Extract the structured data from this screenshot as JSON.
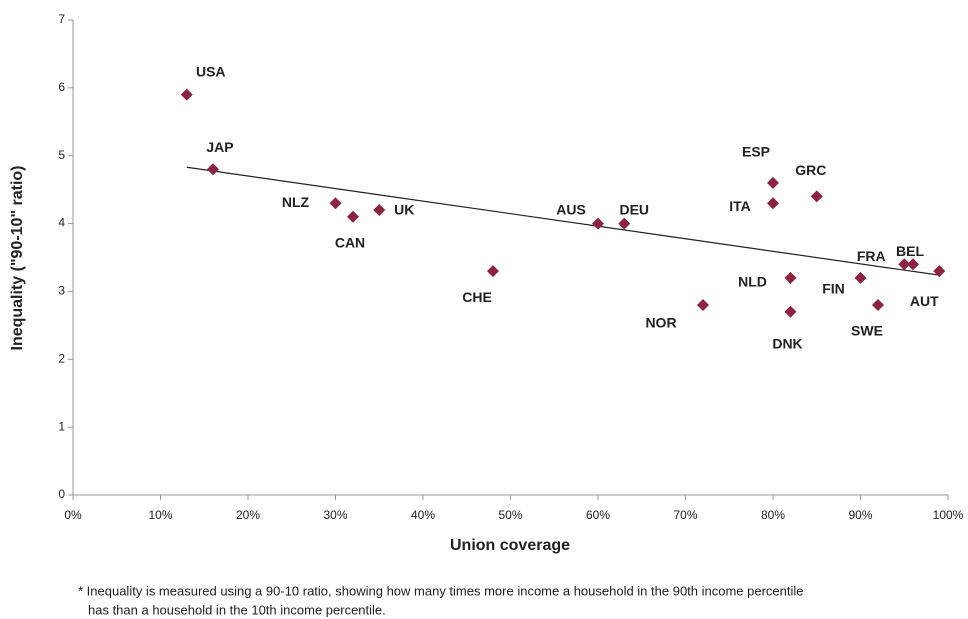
{
  "chart_data": {
    "type": "scatter",
    "x_label": "Union coverage",
    "y_label": "Inequality (\"90-10\" ratio)",
    "color": "#8e2341",
    "xlim": [
      0,
      100
    ],
    "ylim": [
      0,
      7
    ],
    "xticks": [
      {
        "value": 0,
        "label": "0%"
      },
      {
        "value": 10,
        "label": "10%"
      },
      {
        "value": 20,
        "label": "20%"
      },
      {
        "value": 30,
        "label": "30%"
      },
      {
        "value": 40,
        "label": "40%"
      },
      {
        "value": 50,
        "label": "50%"
      },
      {
        "value": 60,
        "label": "60%"
      },
      {
        "value": 70,
        "label": "70%"
      },
      {
        "value": 80,
        "label": "80%"
      },
      {
        "value": 90,
        "label": "90%"
      },
      {
        "value": 100,
        "label": "100%"
      }
    ],
    "yticks": [
      0,
      1,
      2,
      3,
      4,
      5,
      6,
      7
    ],
    "points": [
      {
        "label": "USA",
        "x": 13,
        "y": 5.9
      },
      {
        "label": "JAP",
        "x": 16,
        "y": 4.8
      },
      {
        "label": "NLZ",
        "x": 30,
        "y": 4.3
      },
      {
        "label": "CAN",
        "x": 32,
        "y": 4.1
      },
      {
        "label": "UK",
        "x": 35,
        "y": 4.2
      },
      {
        "label": "CHE",
        "x": 48,
        "y": 3.3
      },
      {
        "label": "AUS",
        "x": 60,
        "y": 4.0
      },
      {
        "label": "DEU",
        "x": 63,
        "y": 4.0
      },
      {
        "label": "NOR",
        "x": 72,
        "y": 2.8
      },
      {
        "label": "ESP",
        "x": 80,
        "y": 4.6
      },
      {
        "label": "ITA",
        "x": 80,
        "y": 4.3
      },
      {
        "label": "GRC",
        "x": 85,
        "y": 4.4
      },
      {
        "label": "NLD",
        "x": 82,
        "y": 3.2
      },
      {
        "label": "DNK",
        "x": 82,
        "y": 2.7
      },
      {
        "label": "FIN",
        "x": 90,
        "y": 3.2
      },
      {
        "label": "FRA",
        "x": 95,
        "y": 3.4
      },
      {
        "label": "BEL",
        "x": 96,
        "y": 3.4
      },
      {
        "label": "AUT",
        "x": 99,
        "y": 3.3
      },
      {
        "label": "SWE",
        "x": 92,
        "y": 2.8
      }
    ],
    "trendline": {
      "x": [
        13,
        99
      ],
      "y": [
        4.83,
        3.24
      ]
    },
    "footnote": [
      "* Inequality is measured using a 90-10 ratio, showing how many times more income a household in the 90th income percentile",
      "has than a household in the 10th income percentile."
    ]
  }
}
